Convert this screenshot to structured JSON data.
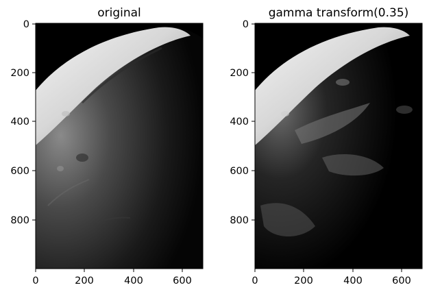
{
  "panels": [
    {
      "title": "original",
      "x_ticks": [
        "0",
        "200",
        "400",
        "600"
      ],
      "y_ticks": [
        "0",
        "200",
        "400",
        "600",
        "800"
      ]
    },
    {
      "title": "gamma transform(0.35)",
      "x_ticks": [
        "0",
        "200",
        "400",
        "600"
      ],
      "y_ticks": [
        "0",
        "200",
        "400",
        "600",
        "800"
      ]
    }
  ]
}
